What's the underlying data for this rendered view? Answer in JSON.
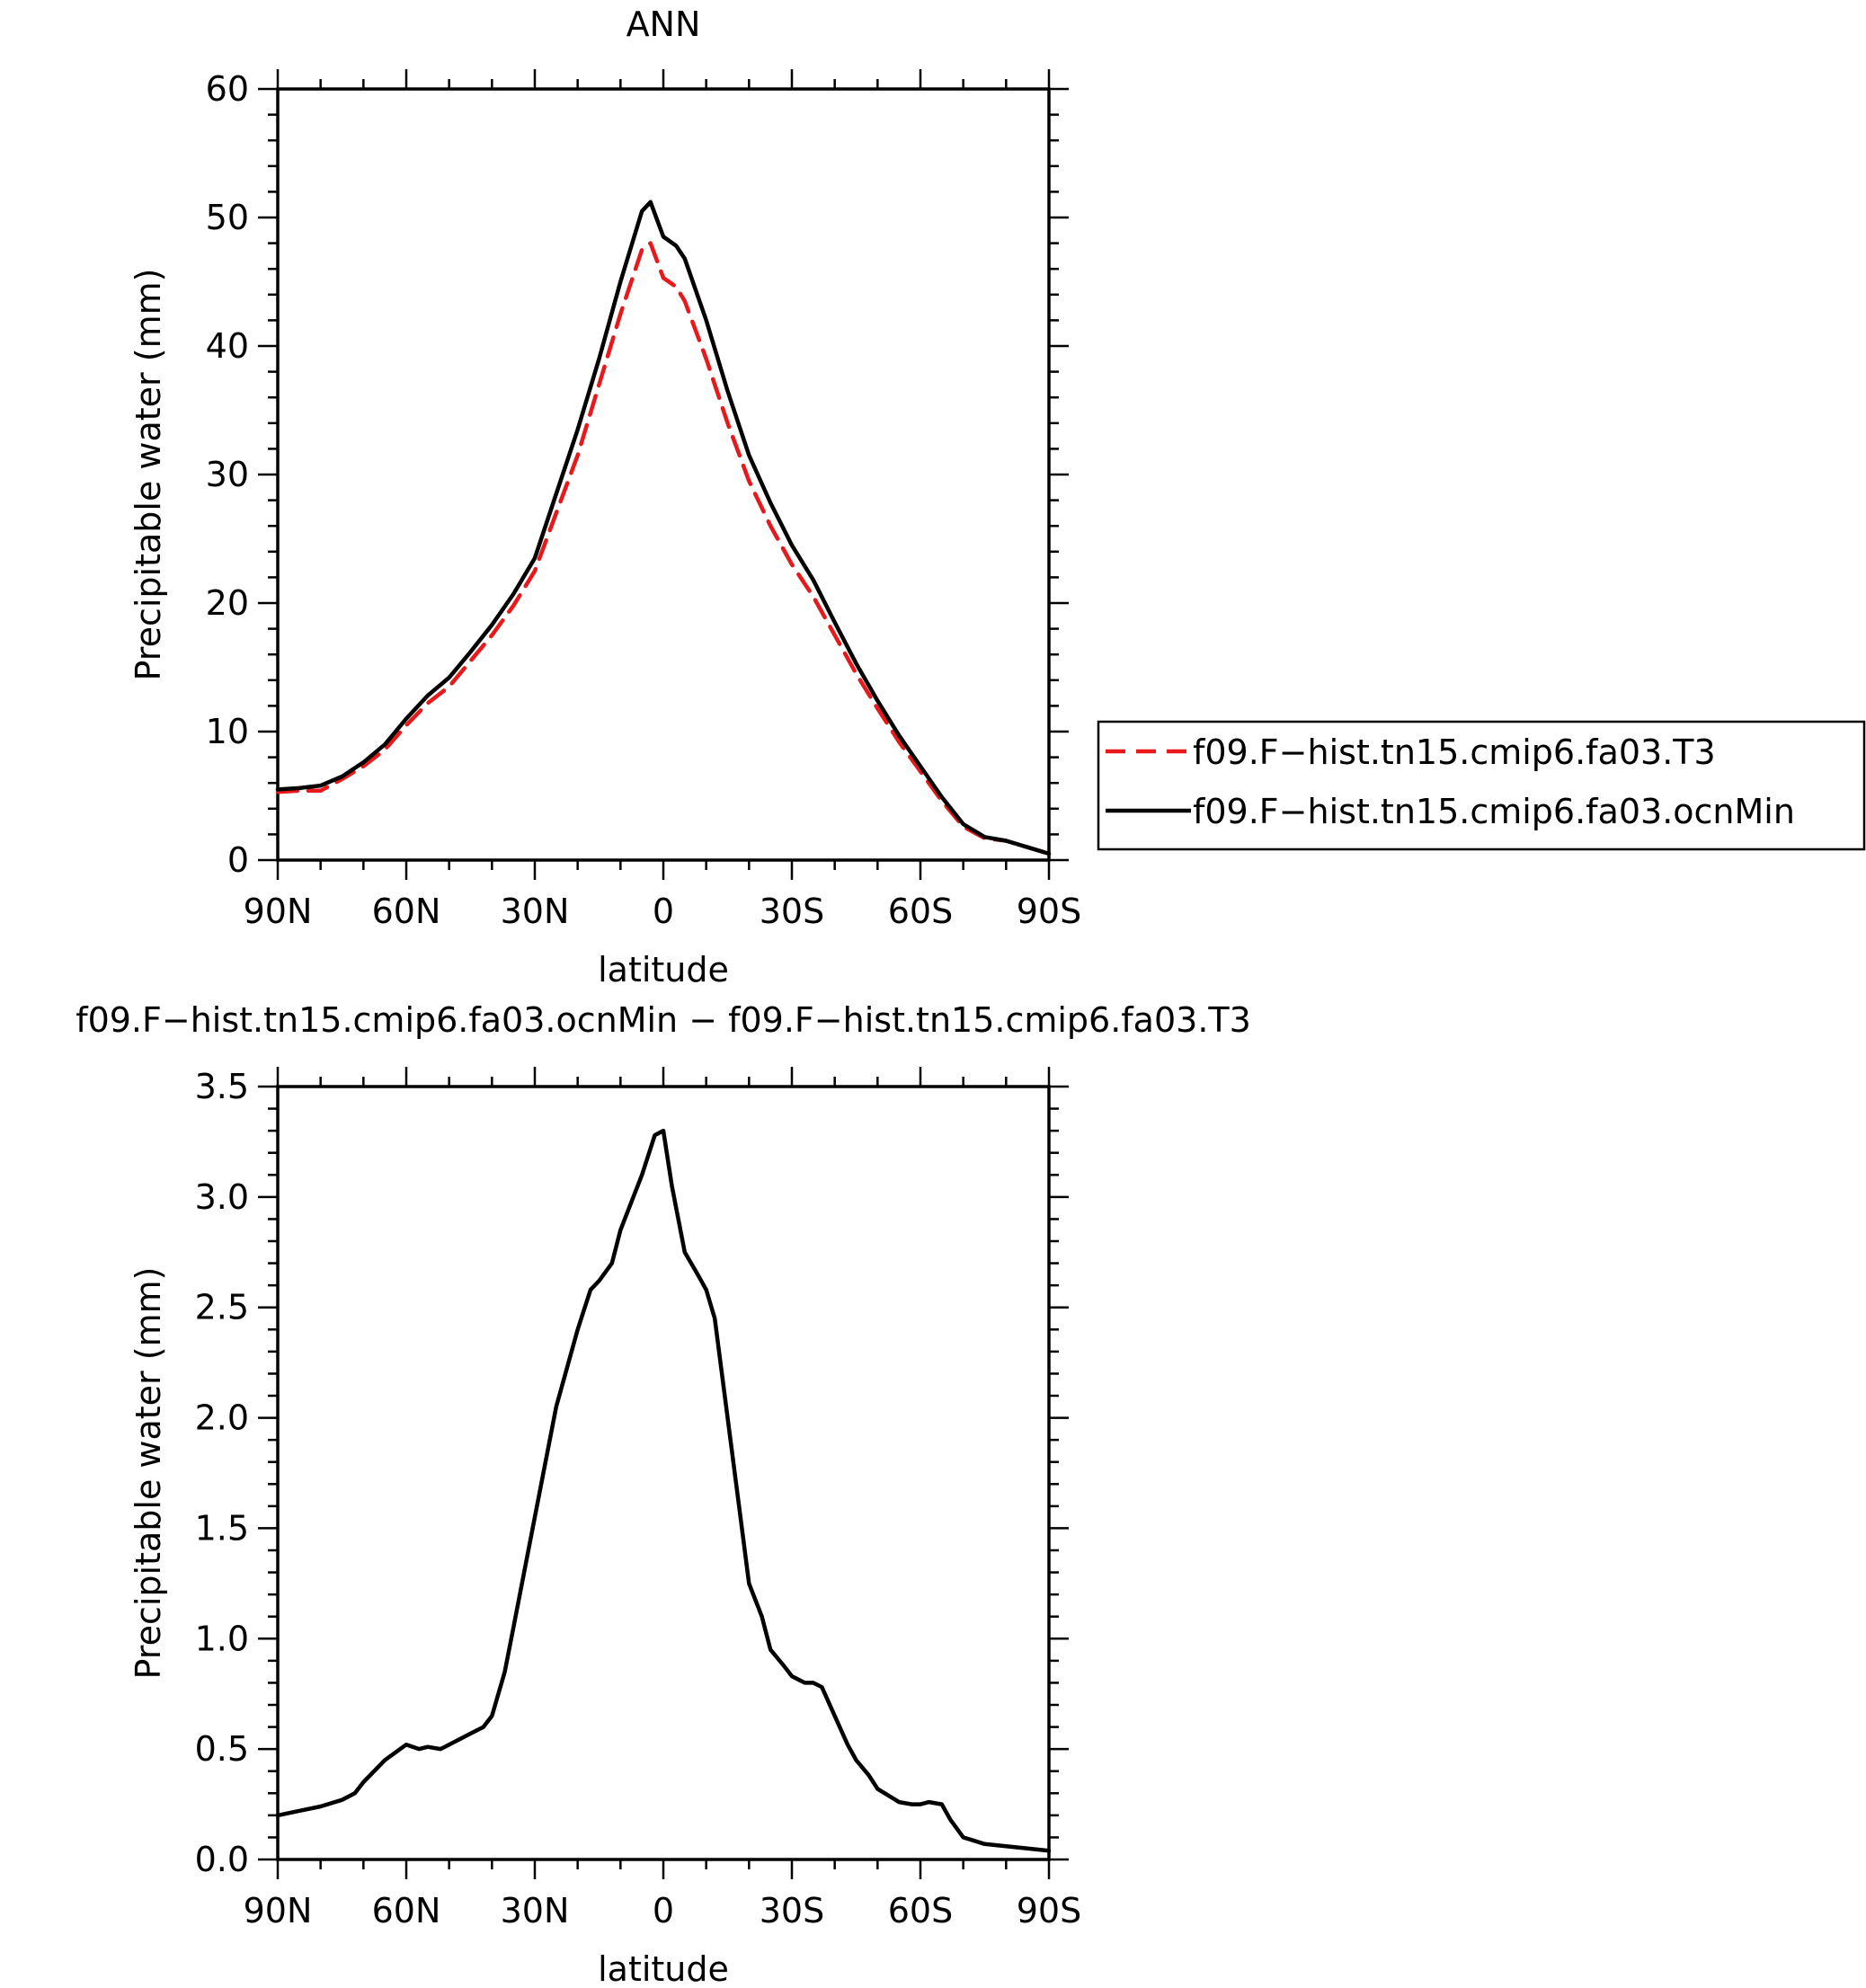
{
  "chart_data": [
    {
      "type": "line",
      "title": "ANN",
      "xlabel": "latitude",
      "ylabel": "Precipitable water (mm)",
      "xlim": [
        90,
        -90
      ],
      "ylim": [
        0,
        60
      ],
      "x_ticks": [
        90,
        60,
        30,
        0,
        -30,
        -60,
        -90
      ],
      "x_tick_labels": [
        "90N",
        "60N",
        "30N",
        "0",
        "30S",
        "60S",
        "90S"
      ],
      "y_ticks": [
        0,
        10,
        20,
        30,
        40,
        50,
        60
      ],
      "y_tick_labels": [
        "0",
        "10",
        "20",
        "30",
        "40",
        "50",
        "60"
      ],
      "grid": false,
      "legend_position": "right",
      "series": [
        {
          "name": "f09.F−hist.tn15.cmip6.fa03.T3",
          "color": "#e8181b",
          "dash": "dashed",
          "x": [
            90,
            85,
            80,
            75,
            70,
            65,
            60,
            55,
            50,
            45,
            40,
            35,
            30,
            25,
            20,
            15,
            10,
            5,
            3,
            0,
            -3,
            -5,
            -10,
            -15,
            -20,
            -25,
            -30,
            -35,
            -40,
            -45,
            -50,
            -55,
            -60,
            -65,
            -70,
            -75,
            -80,
            -85,
            -90
          ],
          "values": [
            5.3,
            5.4,
            5.4,
            6.3,
            7.3,
            8.6,
            10.5,
            12.2,
            13.5,
            15.5,
            17.5,
            19.8,
            22.5,
            27.0,
            31.5,
            37.0,
            42.5,
            47.5,
            48.0,
            45.3,
            44.6,
            43.5,
            39.0,
            34.0,
            29.5,
            26.0,
            23.0,
            20.5,
            17.5,
            14.5,
            11.8,
            9.2,
            6.9,
            4.6,
            2.6,
            1.7,
            1.5,
            1.0,
            0.5
          ]
        },
        {
          "name": "f09.F−hist.tn15.cmip6.fa03.ocnMin",
          "color": "#000000",
          "dash": "solid",
          "x": [
            90,
            85,
            80,
            75,
            70,
            65,
            60,
            55,
            50,
            45,
            40,
            35,
            30,
            25,
            20,
            15,
            10,
            5,
            3,
            0,
            -3,
            -5,
            -10,
            -15,
            -20,
            -25,
            -30,
            -35,
            -40,
            -45,
            -50,
            -55,
            -60,
            -65,
            -70,
            -75,
            -80,
            -85,
            -90
          ],
          "values": [
            5.5,
            5.6,
            5.8,
            6.5,
            7.6,
            9.0,
            11.0,
            12.8,
            14.2,
            16.2,
            18.3,
            20.7,
            23.5,
            28.5,
            33.5,
            39.0,
            45.0,
            50.5,
            51.2,
            48.5,
            47.8,
            46.8,
            42.0,
            36.5,
            31.5,
            27.8,
            24.5,
            21.8,
            18.5,
            15.3,
            12.4,
            9.7,
            7.3,
            4.9,
            2.8,
            1.8,
            1.5,
            1.0,
            0.5
          ]
        }
      ]
    },
    {
      "type": "line",
      "title": "f09.F−hist.tn15.cmip6.fa03.ocnMin − f09.F−hist.tn15.cmip6.fa03.T3",
      "xlabel": "latitude",
      "ylabel": "Precipitable water (mm)",
      "xlim": [
        90,
        -90
      ],
      "ylim": [
        0,
        3.5
      ],
      "x_ticks": [
        90,
        60,
        30,
        0,
        -30,
        -60,
        -90
      ],
      "x_tick_labels": [
        "90N",
        "60N",
        "30N",
        "0",
        "30S",
        "60S",
        "90S"
      ],
      "y_ticks": [
        0,
        0.5,
        1.0,
        1.5,
        2.0,
        2.5,
        3.0,
        3.5
      ],
      "y_tick_labels": [
        "0.0",
        "0.5",
        "1.0",
        "1.5",
        "2.0",
        "2.5",
        "3.0",
        "3.5"
      ],
      "grid": false,
      "series": [
        {
          "color": "#000000",
          "dash": "solid",
          "x": [
            90,
            85,
            80,
            75,
            72,
            70,
            65,
            60,
            57,
            55,
            52,
            50,
            45,
            42,
            40,
            37,
            35,
            30,
            25,
            20,
            17,
            15,
            12,
            10,
            7,
            5,
            2,
            0,
            -2,
            -5,
            -8,
            -10,
            -12,
            -15,
            -18,
            -20,
            -23,
            -25,
            -28,
            -30,
            -33,
            -35,
            -37,
            -40,
            -43,
            -45,
            -48,
            -50,
            -55,
            -58,
            -60,
            -62,
            -65,
            -67,
            -70,
            -75,
            -80,
            -85,
            -90
          ],
          "values": [
            0.2,
            0.22,
            0.24,
            0.27,
            0.3,
            0.35,
            0.45,
            0.52,
            0.5,
            0.51,
            0.5,
            0.52,
            0.57,
            0.6,
            0.65,
            0.85,
            1.05,
            1.55,
            2.05,
            2.4,
            2.58,
            2.62,
            2.7,
            2.85,
            3.0,
            3.1,
            3.28,
            3.3,
            3.05,
            2.75,
            2.65,
            2.58,
            2.45,
            2.0,
            1.55,
            1.25,
            1.1,
            0.95,
            0.88,
            0.83,
            0.8,
            0.8,
            0.78,
            0.65,
            0.52,
            0.45,
            0.38,
            0.32,
            0.26,
            0.25,
            0.25,
            0.26,
            0.25,
            0.18,
            0.1,
            0.07,
            0.06,
            0.05,
            0.04
          ]
        }
      ]
    }
  ]
}
